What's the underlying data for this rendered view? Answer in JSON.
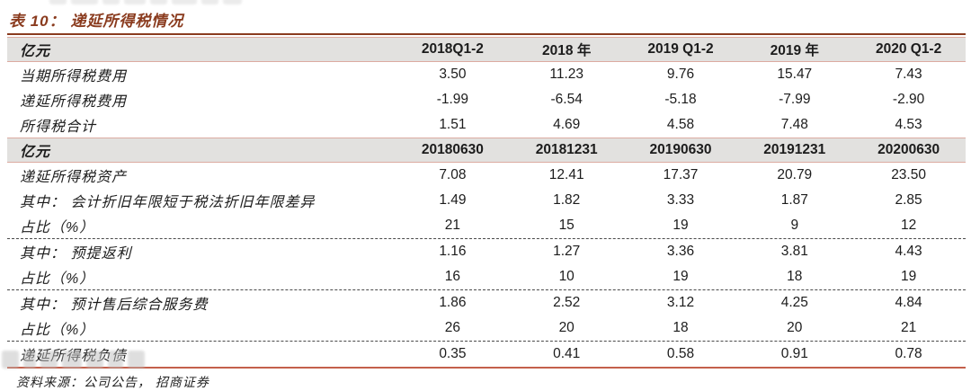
{
  "title": "表 10：  递延所得税情况",
  "colors": {
    "accent_brown": "#8a3b1e",
    "band_bg": "#e2e1df",
    "band_border": "#dcaba1",
    "bottom_line": "#c4604b"
  },
  "section1": {
    "unit_label": "亿元",
    "columns": [
      "2018Q1-2",
      "2018 年",
      "2019 Q1-2",
      "2019 年",
      "2020 Q1-2"
    ],
    "rows": [
      {
        "label": "当期所得税费用",
        "values": [
          "3.50",
          "11.23",
          "9.76",
          "15.47",
          "7.43"
        ],
        "dashed_after": false
      },
      {
        "label": "递延所得税费用",
        "values": [
          "-1.99",
          "-6.54",
          "-5.18",
          "-7.99",
          "-2.90"
        ],
        "dashed_after": false
      },
      {
        "label": "所得税合计",
        "values": [
          "1.51",
          "4.69",
          "4.58",
          "7.48",
          "4.53"
        ],
        "dashed_after": false
      }
    ]
  },
  "section2": {
    "unit_label": "亿元",
    "columns": [
      "20180630",
      "20181231",
      "20190630",
      "20191231",
      "20200630"
    ],
    "rows": [
      {
        "label": "递延所得税资产",
        "values": [
          "7.08",
          "12.41",
          "17.37",
          "20.79",
          "23.50"
        ],
        "dashed_after": false
      },
      {
        "label": "其中：  会计折旧年限短于税法折旧年限差异",
        "values": [
          "1.49",
          "1.82",
          "3.33",
          "1.87",
          "2.85"
        ],
        "dashed_after": false
      },
      {
        "label": "占比（%）",
        "values": [
          "21",
          "15",
          "19",
          "9",
          "12"
        ],
        "dashed_after": true
      },
      {
        "label": "其中：  预提返利",
        "values": [
          "1.16",
          "1.27",
          "3.36",
          "3.81",
          "4.43"
        ],
        "dashed_after": false
      },
      {
        "label": "占比（%）",
        "values": [
          "16",
          "10",
          "19",
          "18",
          "19"
        ],
        "dashed_after": true
      },
      {
        "label": "其中：  预计售后综合服务费",
        "values": [
          "1.86",
          "2.52",
          "3.12",
          "4.25",
          "4.84"
        ],
        "dashed_after": false
      },
      {
        "label": "占比（%）",
        "values": [
          "26",
          "20",
          "18",
          "20",
          "21"
        ],
        "dashed_after": true
      },
      {
        "label": "递延所得税负债",
        "values": [
          "0.35",
          "0.41",
          "0.58",
          "0.91",
          "0.78"
        ],
        "dashed_after": false
      }
    ]
  },
  "footer": {
    "source_text": "资料来源：公司公告，  招商证券"
  }
}
